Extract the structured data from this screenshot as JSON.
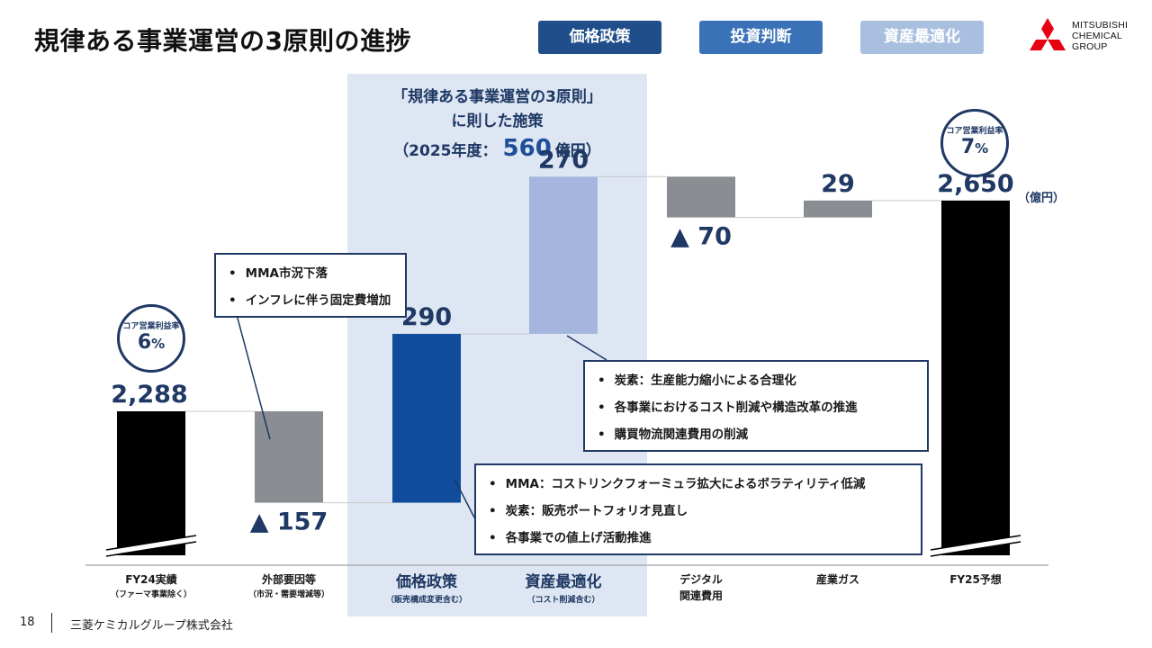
{
  "header": {
    "title": "規律ある事業運営の3原則の進捗",
    "tags": [
      {
        "label": "価格政策",
        "color": "#1f4e8a"
      },
      {
        "label": "投資判断",
        "color": "#3a72b8"
      },
      {
        "label": "資産最適化",
        "color": "#a9bfe0"
      }
    ],
    "logo_lines": [
      "MITSUBISHI",
      "CHEMICAL",
      "GROUP"
    ]
  },
  "band": {
    "line1": "「規律ある事業運営の3原則」",
    "line2": "に則した施策",
    "line3_prefix": "（2025年度：",
    "line3_value": "560",
    "line3_suffix": "億円）"
  },
  "margins": [
    {
      "label": "コア営業利益率",
      "value": "6",
      "unit": "%"
    },
    {
      "label": "コア営業利益率",
      "value": "7",
      "unit": "%"
    }
  ],
  "callouts": {
    "external": [
      "MMA市況下落",
      "インフレに伴う固定費増加"
    ],
    "asset": [
      "炭素：生産能力縮小による合理化",
      "各事業におけるコスト削減や構造改革の推進",
      "購買物流関連費用の削減"
    ],
    "price": [
      "MMA：コストリンクフォーミュラ拡大によるボラティリティ低減",
      "炭素：販売ポートフォリオ見直し",
      "各事業での値上げ活動推進"
    ]
  },
  "footer": {
    "page": "18",
    "company": "三菱ケミカルグループ株式会社"
  },
  "chart_data": {
    "type": "bar",
    "subtype": "waterfall",
    "unit": "（億円）",
    "categories": [
      {
        "name": "FY24実績",
        "sub": "（ファーマ事業除く）"
      },
      {
        "name": "外部要因等",
        "sub": "（市況・需要増減等）"
      },
      {
        "name": "価格政策",
        "sub": "（販売構成変更含む）"
      },
      {
        "name": "資産最適化",
        "sub": "（コスト削減含む）"
      },
      {
        "name": "デジタル",
        "sub": "関連費用"
      },
      {
        "name": "産業ガス",
        "sub": ""
      },
      {
        "name": "FY25予想",
        "sub": ""
      }
    ],
    "values": [
      2288,
      -157,
      290,
      270,
      -70,
      29,
      2650
    ],
    "value_labels": [
      "2,288",
      "▲ 157",
      "290",
      "270",
      "▲ 70",
      "29",
      "2,650"
    ],
    "kinds": [
      "total",
      "delta",
      "delta",
      "delta",
      "delta",
      "delta",
      "total"
    ],
    "colors": [
      "#000000",
      "#8a8d91",
      "#0f4c9c",
      "#a4b6de",
      "#8a8d91",
      "#8a8d91",
      "#000000"
    ],
    "axis_break": true
  }
}
